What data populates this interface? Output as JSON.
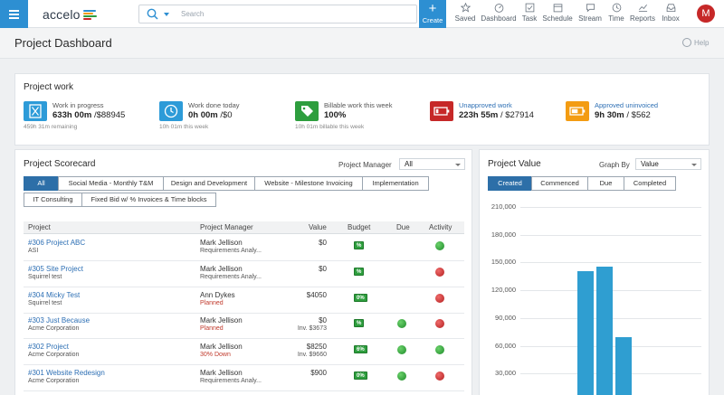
{
  "app": {
    "logo_text": "accelo",
    "colors": {
      "primary": "#2d8fd2",
      "accent_dark": "#2d6fa8",
      "bar": "#2f9ed1",
      "avatar": "#c62828"
    }
  },
  "topbar": {
    "search": {
      "placeholder": "Search",
      "value": ""
    },
    "create_label": "Create",
    "nav": [
      {
        "label": "Saved",
        "icon": "star-icon"
      },
      {
        "label": "Dashboard",
        "icon": "gauge-icon"
      },
      {
        "label": "Task",
        "icon": "checkbox-icon"
      },
      {
        "label": "Schedule",
        "icon": "calendar-icon"
      },
      {
        "label": "Stream",
        "icon": "chat-icon"
      },
      {
        "label": "Time",
        "icon": "clock-icon"
      },
      {
        "label": "Reports",
        "icon": "chart-icon"
      },
      {
        "label": "Inbox",
        "icon": "inbox-icon"
      }
    ],
    "avatar_initial": "M"
  },
  "page": {
    "title": "Project Dashboard",
    "help_label": "Help"
  },
  "project_work": {
    "title": "Project work",
    "items": [
      {
        "label": "Work in progress",
        "value_bold": "633h 00m",
        "value_rest": " /$88945",
        "sub": "459h 31m remaining",
        "color": "#2d9bd8",
        "icon": "hourglass-icon"
      },
      {
        "label": "Work done today",
        "value_bold": "0h 00m",
        "value_rest": " /$0",
        "sub": "10h 01m this week",
        "color": "#2d9bd8",
        "icon": "clock-icon"
      },
      {
        "label": "Billable work this week",
        "value_bold": "100%",
        "value_rest": "",
        "sub": "10h 01m billable this week",
        "color": "#2e9e3e",
        "icon": "tag-icon"
      },
      {
        "label": "Unapproved work",
        "value_bold": "223h 55m",
        "value_rest": " / $27914",
        "sub": "",
        "color": "#c62828",
        "icon": "battery-icon"
      },
      {
        "label": "Approved uninvoiced",
        "value_bold": "9h 30m",
        "value_rest": " / $562",
        "sub": "",
        "color": "#f39c12",
        "icon": "battery-icon"
      }
    ]
  },
  "scorecard": {
    "title": "Project Scorecard",
    "pm_filter_label": "Project Manager",
    "pm_filter_value": "All",
    "tabs": [
      {
        "label": "All"
      },
      {
        "label": "Social Media - Monthly T&M"
      },
      {
        "label": "Design and Development"
      },
      {
        "label": "Website - Milestone Invoicing"
      },
      {
        "label": "Implementation"
      },
      {
        "label": "IT Consulting"
      },
      {
        "label": "Fixed Bid w/ % Invoices & Time blocks"
      }
    ],
    "columns": [
      "Project",
      "Project Manager",
      "Value",
      "Budget",
      "Due",
      "Activity"
    ],
    "rows": [
      {
        "project": "#306 Project ABC",
        "client": "ASI",
        "manager": "Mark Jellison",
        "manager_sub": "Requirements Analy...",
        "manager_sub_red": false,
        "value": "$0",
        "value_sub": "",
        "budget": "%",
        "due": "",
        "activity": "green"
      },
      {
        "project": "#305 Site Project",
        "client": "Squirrel test",
        "manager": "Mark Jellison",
        "manager_sub": "Requirements Analy...",
        "manager_sub_red": false,
        "value": "$0",
        "value_sub": "",
        "budget": "%",
        "due": "",
        "activity": "red"
      },
      {
        "project": "#304 Micky Test",
        "client": "Squirrel test",
        "manager": "Ann Dykes",
        "manager_sub": "Planned",
        "manager_sub_red": true,
        "value": "$4050",
        "value_sub": "",
        "budget": "0%",
        "due": "",
        "activity": "red"
      },
      {
        "project": "#303 Just Because",
        "client": "Acme Corporation",
        "manager": "Mark Jellison",
        "manager_sub": "Planned",
        "manager_sub_red": true,
        "value": "$0",
        "value_sub": "Inv. $3673",
        "budget": "%",
        "due": "green",
        "activity": "red"
      },
      {
        "project": "#302 Project",
        "client": "Acme Corporation",
        "manager": "Mark Jellison",
        "manager_sub": "30% Down",
        "manager_sub_red": true,
        "value": "$8250",
        "value_sub": "Inv. $9660",
        "budget": "6%",
        "due": "green",
        "activity": "green"
      },
      {
        "project": "#301 Website Redesign",
        "client": "Acme Corporation",
        "manager": "Mark Jellison",
        "manager_sub": "Requirements Analy...",
        "manager_sub_red": false,
        "value": "$900",
        "value_sub": "",
        "budget": "0%",
        "due": "green",
        "activity": "red"
      }
    ]
  },
  "project_value": {
    "title": "Project Value",
    "graph_by_label": "Graph By",
    "graph_by_value": "Value",
    "tabs": [
      {
        "label": "Created"
      },
      {
        "label": "Commenced"
      },
      {
        "label": "Due"
      },
      {
        "label": "Completed"
      }
    ],
    "active_tab": "Created"
  },
  "chart_data": {
    "type": "bar",
    "title": "",
    "xlabel": "",
    "ylabel": "",
    "yticks": [
      "210,000",
      "180,000",
      "150,000",
      "120,000",
      "90,000",
      "60,000",
      "30,000"
    ],
    "ylim": [
      0,
      210000
    ],
    "grid": true,
    "values": [
      141000,
      146000,
      69000
    ]
  }
}
